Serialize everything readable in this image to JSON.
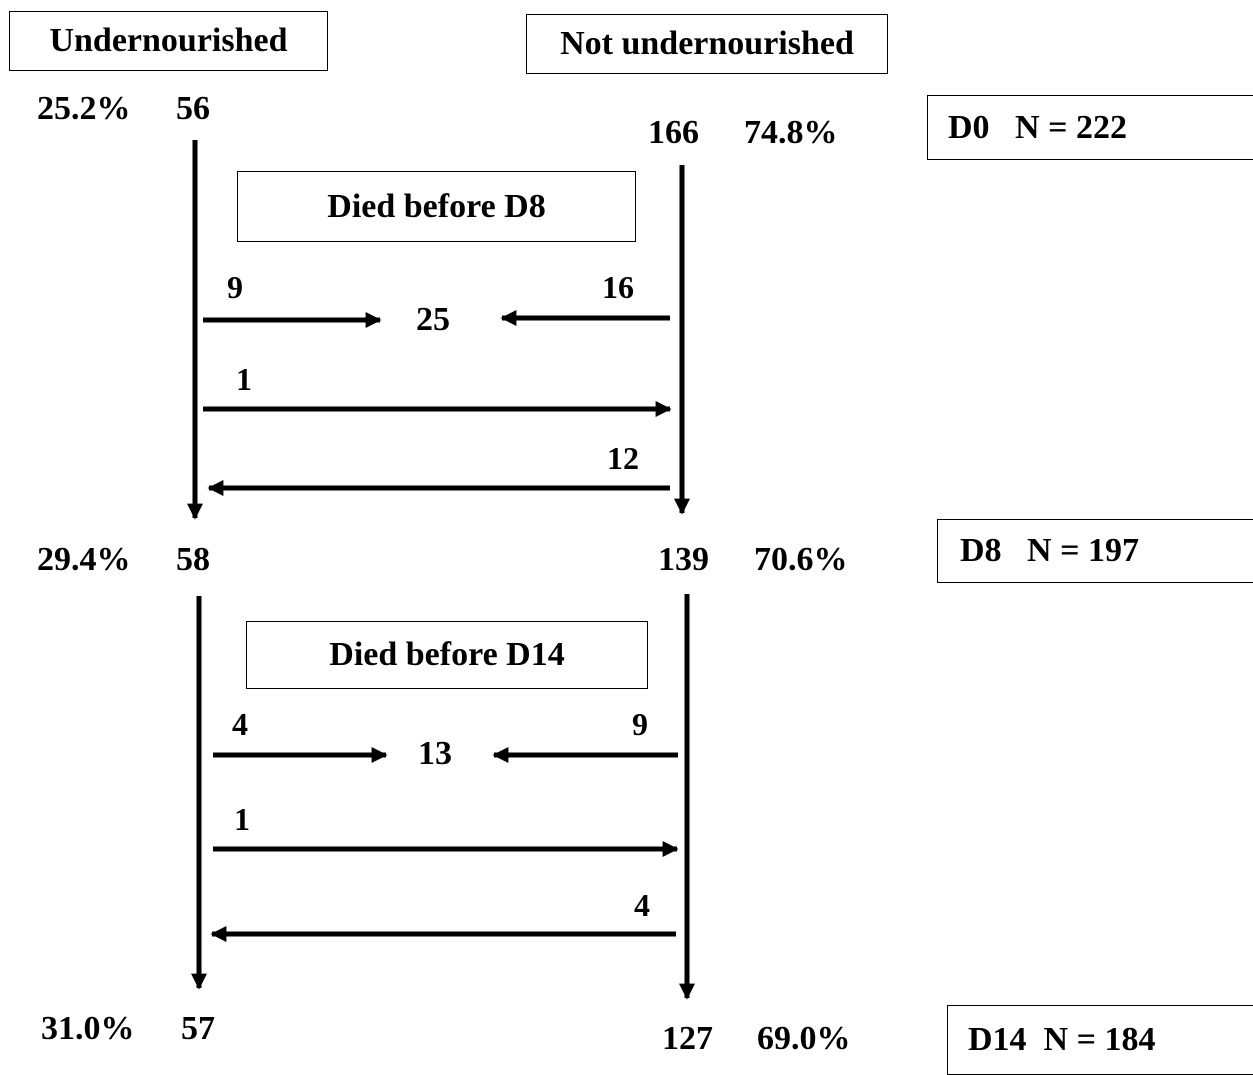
{
  "headers": {
    "undernourished": "Undernourished",
    "not_undernourished": "Not undernourished"
  },
  "timepoints": {
    "d0": "D0   N = 222",
    "d8": "D8   N = 197",
    "d14": "D14  N = 184"
  },
  "d0": {
    "under_pct": "25.2%",
    "under_n": "56",
    "not_n": "166",
    "not_pct": "74.8%"
  },
  "d8": {
    "under_pct": "29.4%",
    "under_n": "58",
    "not_n": "139",
    "not_pct": "70.6%"
  },
  "d14": {
    "under_pct": "31.0%",
    "under_n": "57",
    "not_n": "127",
    "not_pct": "69.0%"
  },
  "period1": {
    "died_label": "Died before D8",
    "died_from_under": "9",
    "died_total": "25",
    "died_from_not": "16",
    "under_to_not": "1",
    "not_to_under": "12"
  },
  "period2": {
    "died_label": "Died before D14",
    "died_from_under": "4",
    "died_total": "13",
    "died_from_not": "9",
    "under_to_not": "1",
    "not_to_under": "4"
  }
}
